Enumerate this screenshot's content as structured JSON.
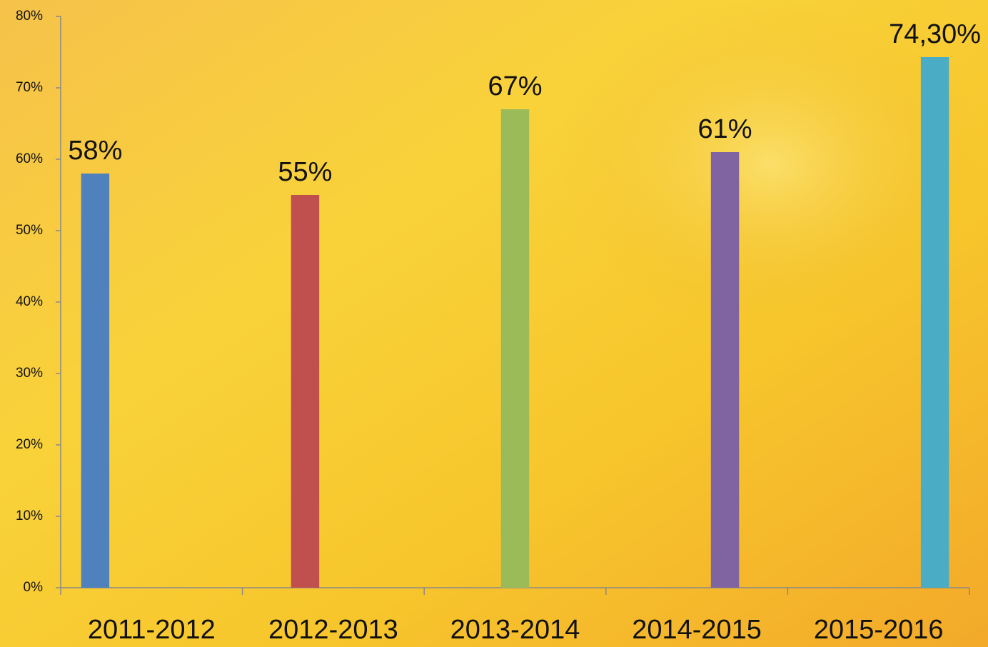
{
  "chart_data": {
    "type": "bar",
    "categories": [
      "2011-2012",
      "2012-2013",
      "2013-2014",
      "2014-2015",
      "2015-2016"
    ],
    "values": [
      58,
      55,
      67,
      61,
      74.3
    ],
    "value_labels": [
      "58%",
      "55%",
      "67%",
      "61%",
      "74,30%"
    ],
    "colors": [
      "#4f81bd",
      "#c0504d",
      "#9bbb59",
      "#8064a2",
      "#4bacc6"
    ],
    "ylim": [
      0,
      80
    ],
    "yticks": [
      {
        "value": 0,
        "label": "0%"
      },
      {
        "value": 10,
        "label": "10%"
      },
      {
        "value": 20,
        "label": "20%"
      },
      {
        "value": 30,
        "label": "30%"
      },
      {
        "value": 40,
        "label": "40%"
      },
      {
        "value": 50,
        "label": "50%"
      },
      {
        "value": 60,
        "label": "60%"
      },
      {
        "value": 70,
        "label": "70%"
      },
      {
        "value": 80,
        "label": "80%"
      }
    ]
  }
}
